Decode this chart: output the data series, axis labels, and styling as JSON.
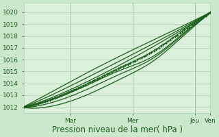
{
  "xlabel": "Pression niveau de la mer( hPa )",
  "bg_color": "#cce8cc",
  "plot_bg_color": "#daf0da",
  "grid_color": "#b0d0b0",
  "line_color": "#1a5c1a",
  "ylim": [
    1011.5,
    1020.8
  ],
  "xlim": [
    0,
    6.0
  ],
  "yticks": [
    1012,
    1013,
    1014,
    1015,
    1016,
    1017,
    1018,
    1019,
    1020
  ],
  "tick_label_fontsize": 6.5,
  "axis_label_fontsize": 8.5,
  "xtick_positions": [
    1.5,
    3.5,
    5.5
  ],
  "xtick_labels": [
    "Mar",
    "Mer",
    "Jeu"
  ],
  "xtick_right_pos": [
    6.0
  ],
  "xtick_right_labels": [
    "Ven"
  ],
  "vline_positions": [
    1.5,
    3.5,
    5.5
  ]
}
